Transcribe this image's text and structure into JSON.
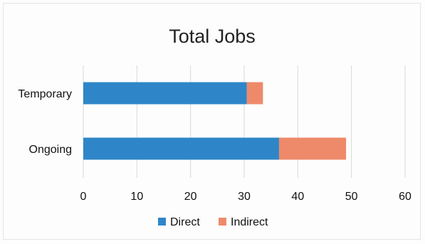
{
  "chart_data": {
    "type": "bar",
    "orientation": "horizontal",
    "stacked": true,
    "title": "Total Jobs",
    "categories": [
      "Temporary",
      "Ongoing"
    ],
    "series": [
      {
        "name": "Direct",
        "color": "#2e86c8",
        "values": [
          30.5,
          36.5
        ]
      },
      {
        "name": "Indirect",
        "color": "#ee8a6a",
        "values": [
          3,
          12.5
        ]
      }
    ],
    "xlim": [
      0,
      60
    ],
    "xticks": [
      "0",
      "10",
      "20",
      "30",
      "40",
      "50",
      "60"
    ],
    "grid": "vertical",
    "legend_position": "bottom"
  }
}
